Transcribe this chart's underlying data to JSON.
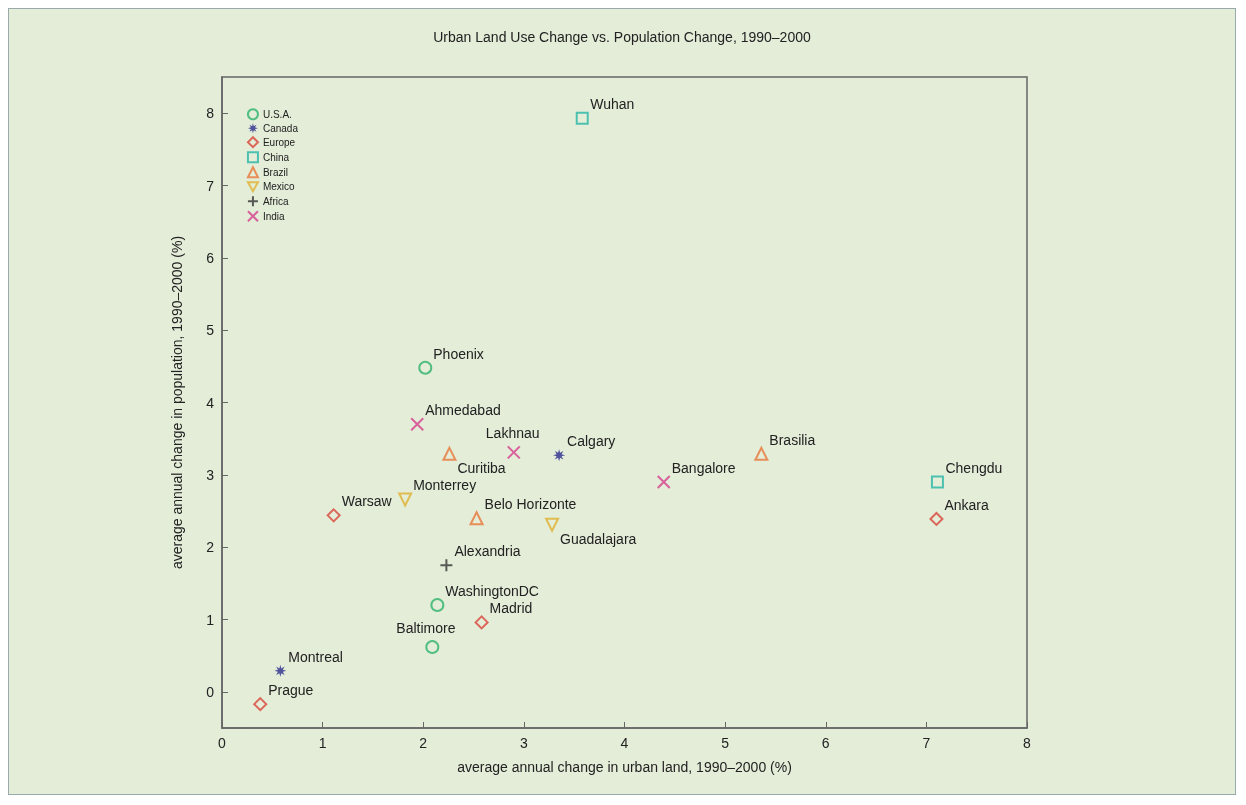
{
  "chart_data": {
    "type": "scatter",
    "title": "Urban Land Use Change vs. Population Change, 1990–2000",
    "xlabel": "average annual change in urban land, 1990–2000 (%)",
    "ylabel": "average annual change in population, 1990–2000 (%)",
    "xlim": [
      0,
      8
    ],
    "xticks": [
      0,
      1,
      2,
      3,
      4,
      5,
      6,
      7,
      8
    ],
    "ylim": [
      -0.5,
      8.5
    ],
    "yticks": [
      0,
      1,
      2,
      3,
      4,
      5,
      6,
      7,
      8
    ],
    "grid": false,
    "legend": "top left",
    "series": [
      {
        "name": "U.S.A.",
        "color": "#2db36b",
        "marker": "circle",
        "x": [
          2.02,
          2.14,
          2.09
        ],
        "values": [
          4.48,
          1.2,
          0.62
        ]
      },
      {
        "name": "Canada",
        "color": "#2b2b8c",
        "marker": "star",
        "x": [
          3.35,
          0.58
        ],
        "values": [
          3.27,
          0.29
        ]
      },
      {
        "name": "Europe",
        "color": "#d9453a",
        "marker": "diamond",
        "x": [
          1.11,
          2.58,
          0.38,
          7.1
        ],
        "values": [
          2.44,
          0.96,
          -0.17,
          2.39
        ]
      },
      {
        "name": "China",
        "color": "#27b5a5",
        "marker": "square",
        "x": [
          3.58,
          7.11
        ],
        "values": [
          7.93,
          2.9
        ]
      },
      {
        "name": "Brazil",
        "color": "#e8763a",
        "marker": "triangle",
        "x": [
          2.26,
          2.53,
          5.36
        ],
        "values": [
          3.29,
          2.4,
          3.29
        ]
      },
      {
        "name": "Mexico",
        "color": "#e0b030",
        "marker": "triangle-down",
        "x": [
          1.82,
          3.28
        ],
        "values": [
          2.66,
          2.31
        ]
      },
      {
        "name": "Africa",
        "color": "#333333",
        "marker": "cross",
        "x": [
          2.23
        ],
        "values": [
          1.75
        ]
      },
      {
        "name": "India",
        "color": "#d63c8c",
        "marker": "x",
        "x": [
          1.94,
          2.9,
          4.39
        ],
        "values": [
          3.7,
          3.31,
          2.9
        ]
      }
    ],
    "annotations": [
      {
        "text": "Phoenix",
        "x": 2.02,
        "y": 4.48
      },
      {
        "text": "WashingtonDC",
        "x": 2.14,
        "y": 1.2
      },
      {
        "text": "Baltimore",
        "x": 2.09,
        "y": 0.62
      },
      {
        "text": "Calgary",
        "x": 3.35,
        "y": 3.27
      },
      {
        "text": "Montreal",
        "x": 0.58,
        "y": 0.29
      },
      {
        "text": "Warsaw",
        "x": 1.11,
        "y": 2.44
      },
      {
        "text": "Madrid",
        "x": 2.58,
        "y": 0.96
      },
      {
        "text": "Prague",
        "x": 0.38,
        "y": -0.17
      },
      {
        "text": "Ankara",
        "x": 7.1,
        "y": 2.39
      },
      {
        "text": "Wuhan",
        "x": 3.58,
        "y": 7.93
      },
      {
        "text": "Chengdu",
        "x": 7.11,
        "y": 2.9
      },
      {
        "text": "Curitiba",
        "x": 2.26,
        "y": 3.29
      },
      {
        "text": "Belo Horizonte",
        "x": 2.53,
        "y": 2.4
      },
      {
        "text": "Brasilia",
        "x": 5.36,
        "y": 3.29
      },
      {
        "text": "Monterrey",
        "x": 1.82,
        "y": 2.66
      },
      {
        "text": "Guadalajara",
        "x": 3.28,
        "y": 2.31
      },
      {
        "text": "Alexandria",
        "x": 2.23,
        "y": 1.75
      },
      {
        "text": "Ahmedabad",
        "x": 1.94,
        "y": 3.7
      },
      {
        "text": "Lakhnau",
        "x": 2.9,
        "y": 3.31
      },
      {
        "text": "Bangalore",
        "x": 4.39,
        "y": 2.9
      }
    ]
  }
}
